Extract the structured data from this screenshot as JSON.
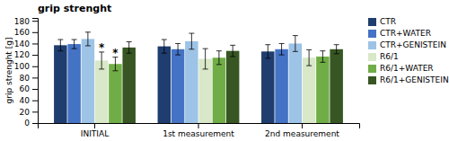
{
  "chart_data": {
    "type": "bar",
    "title": "grip strenght",
    "ylabel": "grip strenght [g]",
    "categories": [
      "INITIAL",
      "1st measurement",
      "2nd measurement"
    ],
    "series": [
      {
        "name": "CTR",
        "color": "#1f3d6e",
        "values": [
          137,
          135,
          126
        ],
        "errors": [
          10,
          12,
          12
        ]
      },
      {
        "name": "CTR+WATER",
        "color": "#4472c4",
        "values": [
          139,
          130,
          130
        ],
        "errors": [
          8,
          10,
          10
        ]
      },
      {
        "name": "CTR+GENISTEIN",
        "color": "#9dc3e6",
        "values": [
          148,
          144,
          140
        ],
        "errors": [
          12,
          14,
          14
        ]
      },
      {
        "name": "R6/1",
        "color": "#d9e8c8",
        "values": [
          110,
          113,
          115
        ],
        "errors": [
          15,
          18,
          14
        ]
      },
      {
        "name": "R6/1+WATER",
        "color": "#70ad47",
        "values": [
          104,
          115,
          117
        ],
        "errors": [
          12,
          12,
          10
        ]
      },
      {
        "name": "R6/1+GENISTEIN",
        "color": "#375623",
        "values": [
          133,
          127,
          130
        ],
        "errors": [
          10,
          10,
          8
        ]
      }
    ],
    "annotations": [
      {
        "text": "*",
        "category": "INITIAL",
        "series": "R6/1"
      },
      {
        "text": "*",
        "category": "INITIAL",
        "series": "R6/1+WATER"
      }
    ],
    "ylim": [
      0,
      185
    ],
    "yticks": [
      0,
      20,
      40,
      60,
      80,
      100,
      120,
      140,
      160,
      180
    ],
    "grid": false,
    "legend": "right"
  }
}
